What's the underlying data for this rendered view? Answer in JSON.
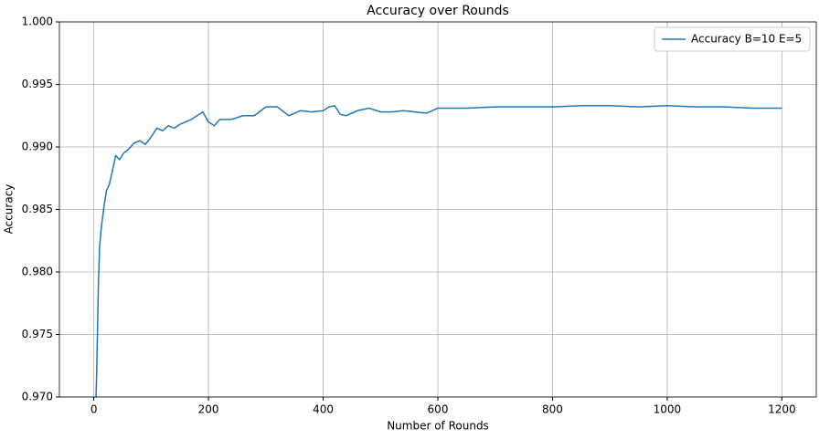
{
  "chart_data": {
    "type": "line",
    "title": "Accuracy over Rounds",
    "x_label": "Number of Rounds",
    "y_label": "Accuracy",
    "x": [
      1,
      5,
      8,
      10,
      13,
      17,
      22,
      27,
      32,
      38,
      45,
      52,
      60,
      70,
      80,
      90,
      100,
      110,
      120,
      130,
      140,
      150,
      160,
      170,
      180,
      190,
      200,
      210,
      220,
      240,
      260,
      280,
      300,
      320,
      340,
      360,
      380,
      400,
      410,
      420,
      430,
      440,
      460,
      480,
      500,
      520,
      540,
      560,
      580,
      600,
      620,
      650,
      700,
      750,
      800,
      850,
      900,
      950,
      1000,
      1050,
      1100,
      1150,
      1200
    ],
    "series": [
      {
        "name": "Accuracy B=10 E=5",
        "color": "#1f77b4",
        "values": [
          0.965,
          0.972,
          0.979,
          0.982,
          0.9835,
          0.985,
          0.9865,
          0.987,
          0.988,
          0.9893,
          0.989,
          0.9895,
          0.9898,
          0.9903,
          0.9905,
          0.9902,
          0.9908,
          0.9915,
          0.9913,
          0.9917,
          0.9915,
          0.9918,
          0.992,
          0.9922,
          0.9925,
          0.9928,
          0.992,
          0.9917,
          0.9922,
          0.9922,
          0.9925,
          0.9925,
          0.9932,
          0.9932,
          0.9925,
          0.9929,
          0.9928,
          0.9929,
          0.9932,
          0.9933,
          0.9926,
          0.9925,
          0.9929,
          0.9931,
          0.9928,
          0.9928,
          0.9929,
          0.9928,
          0.9927,
          0.9931,
          0.9931,
          0.9931,
          0.9932,
          0.9932,
          0.9932,
          0.9933,
          0.9933,
          0.9932,
          0.9933,
          0.9932,
          0.9932,
          0.9931,
          0.9931
        ]
      }
    ],
    "xlim": [
      -60,
      1260
    ],
    "xticks": [
      0,
      200,
      400,
      600,
      800,
      1000,
      1200
    ],
    "ylim": [
      0.97,
      1.0
    ],
    "yticks": [
      {
        "value": 0.97,
        "label": "0.970"
      },
      {
        "value": 0.975,
        "label": "0.975"
      },
      {
        "value": 0.98,
        "label": "0.980"
      },
      {
        "value": 0.985,
        "label": "0.985"
      },
      {
        "value": 0.99,
        "label": "0.990"
      },
      {
        "value": 0.995,
        "label": "0.995"
      },
      {
        "value": 1.0,
        "label": "1.000"
      }
    ],
    "grid": true,
    "legend": "upper right"
  }
}
